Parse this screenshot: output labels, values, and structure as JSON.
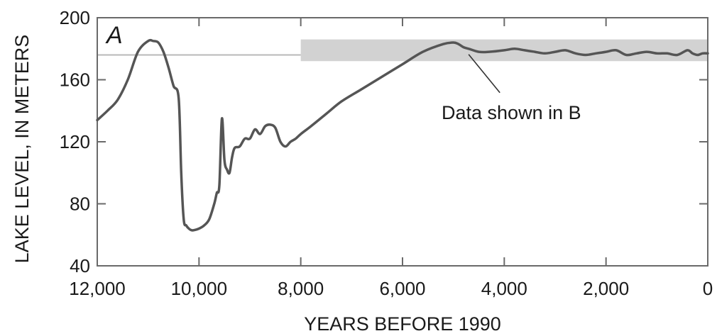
{
  "chart_data": {
    "type": "line",
    "panel_label": "A",
    "xlabel": "YEARS BEFORE 1990",
    "ylabel": "LAKE LEVEL, IN METERS",
    "xlim": [
      12000,
      0
    ],
    "ylim": [
      40,
      200
    ],
    "x_reversed": true,
    "x_ticks": [
      12000,
      10000,
      8000,
      6000,
      4000,
      2000,
      0
    ],
    "x_tick_labels": [
      "12,000",
      "10,000",
      "8,000",
      "6,000",
      "4,000",
      "2,000",
      "0"
    ],
    "y_ticks": [
      40,
      80,
      120,
      160,
      200
    ],
    "y_tick_labels": [
      "40",
      "80",
      "120",
      "160",
      "200"
    ],
    "grid": false,
    "reference_line": {
      "y": 176,
      "x_from": 12000,
      "x_to": 8000
    },
    "highlight_band": {
      "x_from": 8000,
      "x_to": 0,
      "y_from": 172,
      "y_to": 186
    },
    "annotation": {
      "text": "Data shown in B",
      "points_to": {
        "x": 4700,
        "y": 180
      }
    },
    "series": [
      {
        "x": [
          12000,
          11800,
          11600,
          11400,
          11200,
          11000,
          10900,
          10800,
          10700,
          10600,
          10500,
          10400,
          10350,
          10300,
          10250,
          10200,
          10150,
          10100,
          10000,
          9900,
          9800,
          9700,
          9650,
          9600,
          9550,
          9500,
          9450,
          9400,
          9350,
          9300,
          9200,
          9100,
          9000,
          8900,
          8800,
          8700,
          8600,
          8500,
          8400,
          8300,
          8200,
          8100,
          8000,
          7800,
          7500,
          7200,
          6800,
          6400,
          6000,
          5600,
          5200,
          5000,
          4900,
          4800,
          4700,
          4500,
          4300,
          4000,
          3800,
          3600,
          3400,
          3200,
          3000,
          2800,
          2600,
          2400,
          2200,
          2000,
          1800,
          1600,
          1400,
          1200,
          1000,
          800,
          600,
          400,
          300,
          200,
          100,
          0
        ],
        "values": [
          134,
          140,
          147,
          160,
          178,
          185,
          185,
          184,
          178,
          168,
          156,
          148,
          100,
          70,
          66,
          64,
          63,
          63,
          64,
          66,
          70,
          80,
          87,
          92,
          135,
          108,
          102,
          100,
          110,
          116,
          117,
          122,
          122,
          128,
          125,
          130,
          131,
          129,
          120,
          117,
          120,
          122,
          125,
          130,
          138,
          146,
          154,
          162,
          170,
          178,
          183,
          184,
          183,
          181,
          180,
          178,
          178,
          179,
          180,
          179,
          178,
          177,
          178,
          179,
          177,
          176,
          177,
          178,
          179,
          176,
          177,
          178,
          177,
          177,
          176,
          179,
          177,
          176,
          177,
          177
        ]
      }
    ]
  }
}
